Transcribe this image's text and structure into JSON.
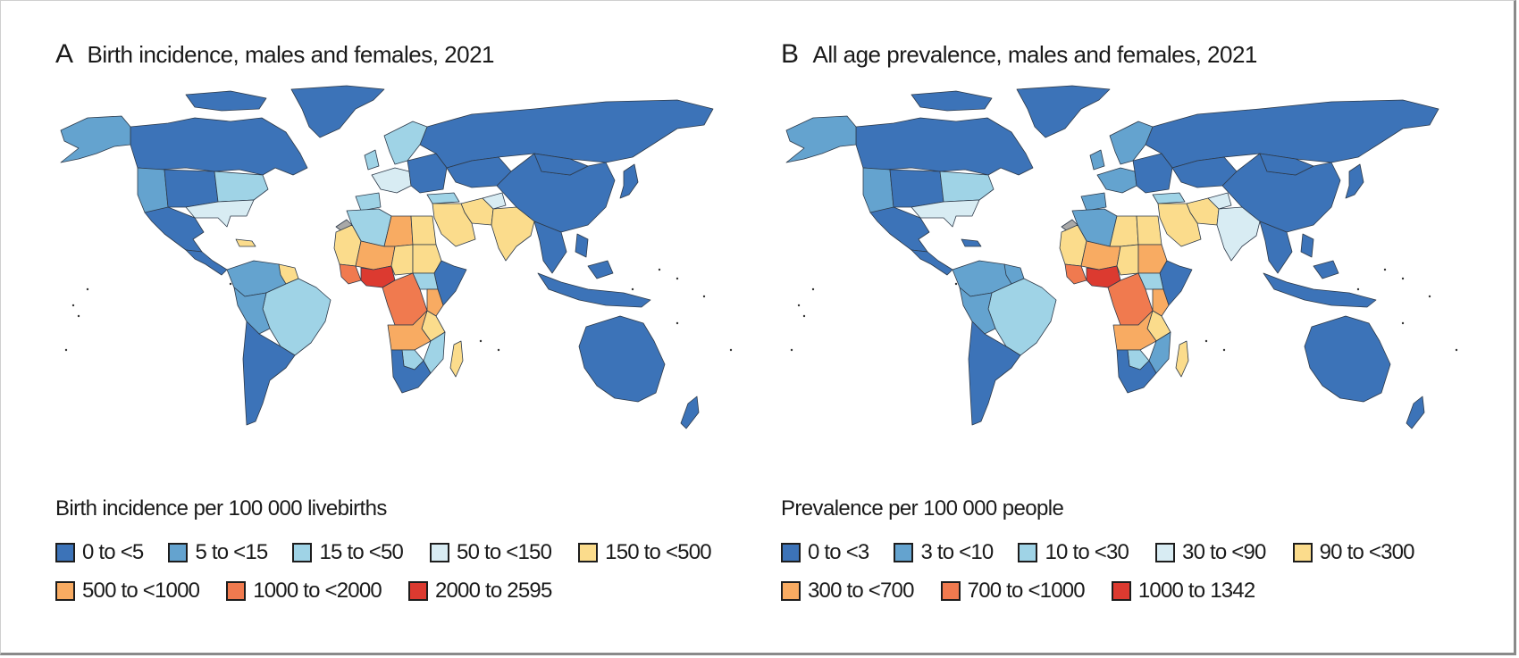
{
  "palette": {
    "c0": "#3c73b8",
    "c1": "#64a3cf",
    "c2": "#9fd3e6",
    "c3": "#d8ecf3",
    "c4": "#fbdc8c",
    "c5": "#f8ab62",
    "c6": "#f07a4f",
    "c7": "#dc3a30",
    "nodata": "#a8a8a8"
  },
  "panels": [
    {
      "letter": "A",
      "title": "Birth incidence, males and females, 2021",
      "legend_title": "Birth incidence per 100 000 livebirths",
      "legend": [
        {
          "label": "0 to <5",
          "color": "#3c73b8"
        },
        {
          "label": "5 to <15",
          "color": "#64a3cf"
        },
        {
          "label": "15 to <50",
          "color": "#9fd3e6"
        },
        {
          "label": "50 to <150",
          "color": "#d8ecf3"
        },
        {
          "label": "150 to <500",
          "color": "#fbdc8c"
        },
        {
          "label": "500 to <1000",
          "color": "#f8ab62"
        },
        {
          "label": "1000 to <2000",
          "color": "#f07a4f"
        },
        {
          "label": "2000 to 2595",
          "color": "#dc3a30"
        }
      ],
      "regions": {
        "alaska": 1,
        "canada": 0,
        "greenland": 0,
        "usa_west": 1,
        "usa_central": 0,
        "usa_east": 2,
        "usa_south": 3,
        "mexico": 0,
        "central_america": 0,
        "caribbean": 4,
        "south_america_north": 1,
        "guianas": 4,
        "brazil": 2,
        "andes": 1,
        "southern_cone": 0,
        "western_europe": 3,
        "northern_europe": 2,
        "eastern_europe": 0,
        "iberia": 2,
        "russia": 0,
        "central_asia": 0,
        "china": 0,
        "mongolia": 0,
        "japan": 0,
        "north_africa_west": 2,
        "libya": 5,
        "egypt": 4,
        "middle_east": 4,
        "turkey": 2,
        "iran": 4,
        "afghanistan": 3,
        "south_asia": 4,
        "southeast_asia": 0,
        "indonesia": 0,
        "australia": 0,
        "new_zealand": 0,
        "sahel_west": 4,
        "mali_niger": 5,
        "nigeria": 7,
        "west_coast": 6,
        "chad": 4,
        "sudan": 4,
        "horn_africa": 0,
        "south_sudan": 2,
        "central_africa": 6,
        "east_africa": 5,
        "tanzania": 4,
        "angola_zambia": 5,
        "southern_africa": 0,
        "botswana": 2,
        "mozambique": 2,
        "madagascar": 4,
        "western_sahara": -1
      }
    },
    {
      "letter": "B",
      "title": "All age prevalence, males and females, 2021",
      "legend_title": "Prevalence per 100 000 people",
      "legend": [
        {
          "label": "0 to <3",
          "color": "#3c73b8"
        },
        {
          "label": "3 to <10",
          "color": "#64a3cf"
        },
        {
          "label": "10 to <30",
          "color": "#9fd3e6"
        },
        {
          "label": "30 to <90",
          "color": "#d8ecf3"
        },
        {
          "label": "90 to <300",
          "color": "#fbdc8c"
        },
        {
          "label": "300 to <700",
          "color": "#f8ab62"
        },
        {
          "label": "700 to <1000",
          "color": "#f07a4f"
        },
        {
          "label": "1000 to 1342",
          "color": "#dc3a30"
        }
      ],
      "regions": {
        "alaska": 1,
        "canada": 0,
        "greenland": 0,
        "usa_west": 1,
        "usa_central": 0,
        "usa_east": 2,
        "usa_south": 3,
        "mexico": 0,
        "central_america": 0,
        "caribbean": 0,
        "south_america_north": 1,
        "guianas": 1,
        "brazil": 2,
        "andes": 1,
        "southern_cone": 0,
        "western_europe": 1,
        "northern_europe": 1,
        "eastern_europe": 0,
        "iberia": 1,
        "russia": 0,
        "central_asia": 0,
        "china": 0,
        "mongolia": 0,
        "japan": 0,
        "north_africa_west": 1,
        "libya": 4,
        "egypt": 4,
        "middle_east": 4,
        "turkey": 2,
        "iran": 4,
        "afghanistan": 3,
        "south_asia": 3,
        "southeast_asia": 0,
        "indonesia": 0,
        "australia": 0,
        "new_zealand": 0,
        "sahel_west": 4,
        "mali_niger": 5,
        "nigeria": 7,
        "west_coast": 6,
        "chad": 4,
        "sudan": 5,
        "horn_africa": 0,
        "south_sudan": 2,
        "central_africa": 6,
        "east_africa": 5,
        "tanzania": 4,
        "angola_zambia": 5,
        "southern_africa": 0,
        "botswana": 2,
        "mozambique": 1,
        "madagascar": 4,
        "western_sahara": -1
      }
    }
  ]
}
